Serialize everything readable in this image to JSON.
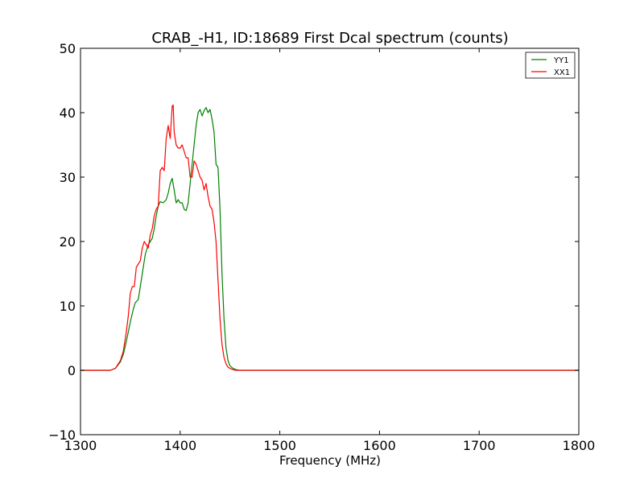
{
  "chart_data": {
    "type": "line",
    "title": "CRAB_-H1, ID:18689 First Dcal spectrum (counts)",
    "xlabel": "Frequency (MHz)",
    "ylabel": "",
    "xlim": [
      1300,
      1800
    ],
    "ylim": [
      -10,
      50
    ],
    "xticks": [
      1300,
      1400,
      1500,
      1600,
      1700,
      1800
    ],
    "xtick_labels": [
      "1300",
      "1400",
      "1500",
      "1600",
      "1700",
      "1800"
    ],
    "yticks": [
      -10,
      0,
      10,
      20,
      30,
      40,
      50
    ],
    "ytick_labels": [
      "−10",
      "0",
      "10",
      "20",
      "30",
      "40",
      "50"
    ],
    "grid": false,
    "legend_position": "top-right",
    "series": [
      {
        "name": "YY1",
        "color": "#008000",
        "x": [
          1300,
          1320,
          1330,
          1335,
          1340,
          1343,
          1346,
          1350,
          1353,
          1355,
          1358,
          1360,
          1362,
          1365,
          1368,
          1370,
          1372,
          1374,
          1376,
          1378,
          1380,
          1383,
          1386,
          1388,
          1390,
          1392,
          1394,
          1396,
          1398,
          1400,
          1402,
          1404,
          1406,
          1408,
          1410,
          1412,
          1414,
          1416,
          1418,
          1420,
          1422,
          1424,
          1426,
          1428,
          1430,
          1432,
          1434,
          1436,
          1438,
          1440,
          1442,
          1444,
          1446,
          1448,
          1450,
          1453,
          1456,
          1460,
          1465,
          1470,
          1480,
          1500,
          1550,
          1600,
          1650,
          1700,
          1750,
          1800
        ],
        "y": [
          0,
          0,
          0,
          0.3,
          1.3,
          2.5,
          4.5,
          7.5,
          9.5,
          10.5,
          11,
          13,
          15,
          18,
          19.5,
          20,
          20.5,
          22,
          24,
          25.5,
          26.2,
          26,
          26.5,
          27.5,
          29,
          29.8,
          28,
          26,
          26.5,
          26,
          26,
          25,
          24.8,
          26,
          29,
          32,
          35,
          38,
          40,
          40.5,
          39.5,
          40.3,
          40.8,
          40,
          40.5,
          39,
          37,
          32,
          31.5,
          25,
          15,
          8,
          3.5,
          1.5,
          0.7,
          0.3,
          0.1,
          0,
          0,
          0,
          0,
          0,
          0,
          0,
          0,
          0,
          0,
          0
        ]
      },
      {
        "name": "XX1",
        "color": "#ff0000",
        "x": [
          1300,
          1320,
          1330,
          1335,
          1340,
          1343,
          1346,
          1348,
          1350,
          1352,
          1354,
          1356,
          1358,
          1360,
          1362,
          1364,
          1366,
          1368,
          1370,
          1372,
          1374,
          1376,
          1378,
          1380,
          1382,
          1384,
          1386,
          1388,
          1390,
          1392,
          1393,
          1394,
          1396,
          1398,
          1400,
          1402,
          1404,
          1406,
          1408,
          1410,
          1412,
          1414,
          1416,
          1418,
          1420,
          1422,
          1424,
          1426,
          1428,
          1430,
          1432,
          1434,
          1436,
          1438,
          1440,
          1442,
          1444,
          1446,
          1448,
          1450,
          1453,
          1456,
          1460,
          1465,
          1470,
          1480,
          1500,
          1550,
          1600,
          1650,
          1700,
          1750,
          1800
        ],
        "y": [
          0,
          0,
          0,
          0.3,
          1.5,
          3,
          6,
          8.5,
          12,
          13,
          13,
          16,
          16.5,
          17,
          19,
          20,
          19.5,
          19,
          21,
          22,
          24,
          25,
          25.5,
          31,
          31.5,
          31,
          36,
          38,
          36,
          41,
          41.2,
          37,
          35,
          34.5,
          34.5,
          35,
          34,
          33,
          33,
          30,
          30,
          32.5,
          32,
          31,
          30,
          29.5,
          28,
          29,
          27,
          25.5,
          25,
          23,
          20,
          14,
          8,
          4,
          2,
          1,
          0.5,
          0.3,
          0.1,
          0,
          0,
          0,
          0,
          0,
          0,
          0,
          0,
          0,
          0,
          0,
          0
        ]
      }
    ]
  }
}
